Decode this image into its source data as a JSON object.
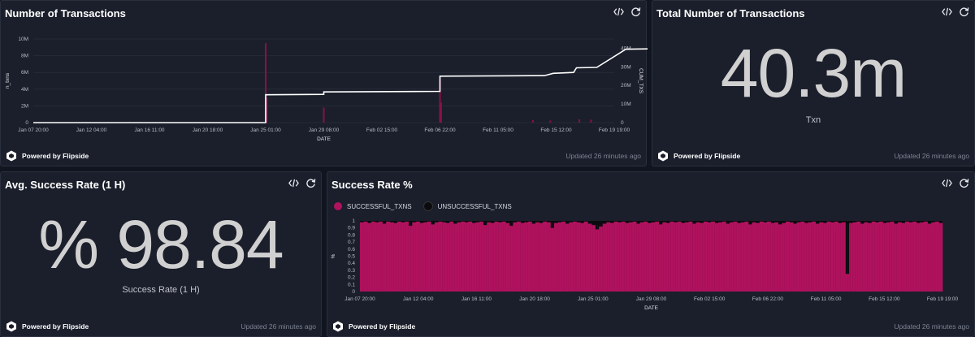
{
  "panels": {
    "transactions_chart": {
      "title": "Number of Transactions",
      "brand": "Powered by Flipside",
      "updated": "Updated 26 minutes ago"
    },
    "total_transactions": {
      "title": "Total Number of Transactions",
      "value": "40.3m",
      "caption": "Txn",
      "brand": "Powered by Flipside",
      "updated": "Updated 26 minutes ago"
    },
    "avg_success_rate": {
      "title": "Avg. Success Rate (1 H)",
      "value": "% 98.84",
      "caption": "Success Rate (1 H)",
      "brand": "Powered by Flipside",
      "updated": "Updated 26 minutes ago"
    },
    "success_rate_chart": {
      "title": "Success Rate %",
      "brand": "Powered by Flipside",
      "updated": "Updated 26 minutes ago"
    }
  },
  "colors": {
    "successful": "#b0125e",
    "unsuccessful": "#0b0b0f",
    "cumulative_line": "#ffffff",
    "bars": "#8a1048"
  },
  "icons": {
    "embed": "code-icon",
    "refresh": "refresh-icon",
    "brand": "flipside-logo-icon"
  },
  "chart_data": [
    {
      "type": "line",
      "chart": "transactions",
      "xlabel": "DATE",
      "ylabel_left": "n_txns",
      "ylabel_right": "CUM_TXS",
      "x_ticks": [
        "Jan 07 20:00",
        "Jan 12 04:00",
        "Jan 16 11:00",
        "Jan 20 18:00",
        "Jan 25 01:00",
        "Jan 29 08:00",
        "Feb 02 15:00",
        "Feb 06 22:00",
        "Feb 11 05:00",
        "Feb 15 12:00",
        "Feb 19 19:00"
      ],
      "ylim_left": [
        0,
        10000000
      ],
      "y_ticks_left": [
        "0",
        "2M",
        "4M",
        "6M",
        "8M",
        "10M"
      ],
      "ylim_right": [
        0,
        45000000
      ],
      "y_ticks_right": [
        "0",
        "10M",
        "20M",
        "30M",
        "40M"
      ],
      "series": [
        {
          "name": "n_txns",
          "kind": "bar",
          "points": [
            {
              "x": 4.0,
              "y": 9500000
            },
            {
              "x": 4.02,
              "y": 3000000
            },
            {
              "x": 5.0,
              "y": 1800000
            },
            {
              "x": 7.0,
              "y": 5200000
            },
            {
              "x": 7.02,
              "y": 2400000
            },
            {
              "x": 8.6,
              "y": 300000
            },
            {
              "x": 8.9,
              "y": 250000
            },
            {
              "x": 9.4,
              "y": 400000
            },
            {
              "x": 9.6,
              "y": 350000
            }
          ]
        },
        {
          "name": "CUM_TXS",
          "kind": "line",
          "points": [
            {
              "x": 0,
              "y": 0
            },
            {
              "x": 4.0,
              "y": 0
            },
            {
              "x": 4.0,
              "y": 15000000
            },
            {
              "x": 5.0,
              "y": 15200000
            },
            {
              "x": 5.0,
              "y": 16500000
            },
            {
              "x": 7.0,
              "y": 16800000
            },
            {
              "x": 7.0,
              "y": 25000000
            },
            {
              "x": 8.8,
              "y": 25300000
            },
            {
              "x": 8.95,
              "y": 26500000
            },
            {
              "x": 9.3,
              "y": 27000000
            },
            {
              "x": 9.35,
              "y": 29500000
            },
            {
              "x": 9.7,
              "y": 29700000
            },
            {
              "x": 10.2,
              "y": 39500000
            },
            {
              "x": 10.85,
              "y": 39800000
            },
            {
              "x": 11.0,
              "y": 40300000
            }
          ]
        }
      ]
    },
    {
      "type": "bar",
      "chart": "success_rate",
      "stacked": true,
      "xlabel": "DATE",
      "ylabel": "%",
      "ylim": [
        0,
        1
      ],
      "y_ticks": [
        "0",
        "0.1",
        "0.2",
        "0.3",
        "0.4",
        "0.5",
        "0.6",
        "0.7",
        "0.8",
        "0.9",
        "1"
      ],
      "x_ticks": [
        "Jan 07 20:00",
        "Jan 12 04:00",
        "Jan 16 11:00",
        "Jan 20 18:00",
        "Jan 25 01:00",
        "Jan 29 08:00",
        "Feb 02 15:00",
        "Feb 06 22:00",
        "Feb 11 05:00",
        "Feb 15 12:00",
        "Feb 19 19:00"
      ],
      "legend": {
        "position": "top-left"
      },
      "series": [
        {
          "name": "SUCCESSFUL_TXNS",
          "color": "#b0125e"
        },
        {
          "name": "UNSUCCESSFUL_TXNS",
          "color": "#0b0b0f"
        }
      ],
      "successful_rate_samples": [
        0.98,
        0.99,
        0.97,
        0.99,
        0.98,
        0.99,
        0.96,
        0.99,
        0.98,
        0.97,
        0.99,
        0.98,
        0.99,
        0.93,
        0.98,
        0.99,
        0.97,
        0.98,
        0.99,
        0.95,
        0.98,
        0.99,
        0.98,
        0.97,
        0.99,
        0.96,
        0.98,
        0.99,
        0.98,
        0.99,
        0.97,
        0.98,
        0.99,
        0.94,
        0.98,
        0.97,
        0.99,
        0.98,
        0.99,
        0.97,
        0.93,
        0.98,
        0.99,
        0.97,
        0.98,
        0.99,
        0.96,
        0.98,
        0.97,
        0.99,
        0.98,
        0.9,
        0.97,
        0.98,
        0.99,
        0.96,
        0.98,
        0.99,
        0.98,
        0.97,
        0.99,
        0.96,
        0.94,
        0.88,
        0.92,
        0.96,
        0.98,
        0.97,
        0.99,
        0.98,
        0.99,
        0.97,
        0.98,
        0.99,
        0.96,
        0.98,
        0.99,
        0.97,
        0.98,
        0.99,
        0.95,
        0.98,
        0.97,
        0.99,
        0.98,
        0.99,
        0.97,
        0.98,
        0.99,
        0.96,
        0.98,
        0.97,
        0.99,
        0.98,
        0.99,
        0.97,
        0.98,
        0.99,
        0.96,
        0.98,
        0.99,
        0.97,
        0.98,
        0.99,
        0.95,
        0.98,
        0.97,
        0.99,
        0.98,
        0.99,
        0.97,
        0.98,
        0.95,
        0.97,
        0.99,
        0.98,
        0.96,
        0.98,
        0.99,
        0.97,
        0.98,
        0.99,
        0.96,
        0.98,
        0.97,
        0.99,
        0.98,
        0.99,
        0.97,
        0.98,
        0.25,
        0.97,
        0.98,
        0.99,
        0.96,
        0.98,
        0.97,
        0.99,
        0.98,
        0.99,
        0.97,
        0.98,
        0.99,
        0.96,
        0.98,
        0.97,
        0.99,
        0.98,
        0.99,
        0.97,
        0.98,
        0.99,
        0.96,
        0.98,
        0.99,
        0.97
      ]
    }
  ]
}
